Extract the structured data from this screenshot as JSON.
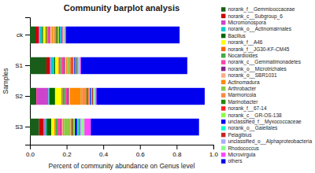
{
  "chart_data": {
    "type": "bar",
    "orientation": "horizontal",
    "stacked": true,
    "title": "Community barplot analysis",
    "xlabel": "Percent of community abundance on Genus level",
    "ylabel": "Samples",
    "categories": [
      "ck",
      "S1",
      "S2",
      "S3"
    ],
    "series": [
      {
        "name": "norank_f__Gemmiooccaceae",
        "color": "#1a5c1a",
        "values": [
          0.03,
          0.09,
          0.03,
          0.05
        ]
      },
      {
        "name": "norank_c__Subgroup_6",
        "color": "#cc0000",
        "values": [
          0.018,
          0.018,
          0.006,
          0.025
        ]
      },
      {
        "name": "Micromonospora",
        "color": "#cc44cc",
        "values": [
          0.006,
          0.006,
          0.065,
          0.006
        ]
      },
      {
        "name": "norank_o__Actinomairnales",
        "color": "#00cccc",
        "values": [
          0.012,
          0.018,
          0.006,
          0.01
        ]
      },
      {
        "name": "Bacillus",
        "color": "#006600",
        "values": [
          0.006,
          0.006,
          0.03,
          0.025
        ]
      },
      {
        "name": "norank_f__A46",
        "color": "#ffff00",
        "values": [
          0.012,
          0.018,
          0.035,
          0.018
        ]
      },
      {
        "name": "norank_f__JG30-KF-CM45",
        "color": "#ff6600",
        "values": [
          0.006,
          0.008,
          0.006,
          0.006
        ]
      },
      {
        "name": "Nocardioides",
        "color": "#44aa44",
        "values": [
          0.006,
          0.006,
          0.014,
          0.01
        ]
      },
      {
        "name": "norank_c__Gemmatimonadetes",
        "color": "#ff44aa",
        "values": [
          0.008,
          0.014,
          0.014,
          0.018
        ]
      },
      {
        "name": "norank_o__Microtrichales",
        "color": "#882288",
        "values": [
          0.006,
          0.006,
          0.006,
          0.006
        ]
      },
      {
        "name": "norank_o__SBR1031",
        "color": "#ffaa88",
        "values": [
          0.01,
          0.008,
          0.006,
          0.006
        ]
      },
      {
        "name": "Actinomadura",
        "color": "#ff8800",
        "values": [
          0.006,
          0.006,
          0.06,
          0.006
        ]
      },
      {
        "name": "Arthrobacter",
        "color": "#88cc44",
        "values": [
          0.006,
          0.01,
          0.006,
          0.035
        ]
      },
      {
        "name": "Marmoricola",
        "color": "#ff8844",
        "values": [
          0.01,
          0.01,
          0.025,
          0.006
        ]
      },
      {
        "name": "Marinobacter",
        "color": "#228800",
        "values": [
          0.006,
          0.006,
          0.006,
          0.006
        ]
      },
      {
        "name": "norank_f__67-14",
        "color": "#ff2222",
        "values": [
          0.006,
          0.006,
          0.006,
          0.006
        ]
      },
      {
        "name": "norank_c__GR-OS-138",
        "color": "#88ff44",
        "values": [
          0.006,
          0.006,
          0.006,
          0.006
        ]
      },
      {
        "name": "unclassified_f__Myxococcaceae",
        "color": "#0000ff",
        "values": [
          0.006,
          0.006,
          0.006,
          0.012
        ]
      },
      {
        "name": "norank_o__Gaiellales",
        "color": "#00ffcc",
        "values": [
          0.006,
          0.006,
          0.006,
          0.01
        ]
      },
      {
        "name": "Pelagibius",
        "color": "#cc2222",
        "values": [
          0.006,
          0.006,
          0.006,
          0.006
        ]
      },
      {
        "name": "unclassified_o__Alphaproteobacteria",
        "color": "#aaaaff",
        "values": [
          0.006,
          0.006,
          0.006,
          0.006
        ]
      },
      {
        "name": "Rhodococcus",
        "color": "#88ff88",
        "values": [
          0.006,
          0.006,
          0.006,
          0.018
        ]
      },
      {
        "name": "Microvirgula",
        "color": "#ff44ff",
        "values": [
          0.006,
          0.006,
          0.006,
          0.035
        ]
      },
      {
        "name": "others",
        "color": "#0000ee",
        "values": [
          0.62,
          0.58,
          0.59,
          0.59
        ]
      }
    ],
    "xlim": [
      0,
      1.0
    ],
    "xticks": [
      {
        "value": 0,
        "label": "0.0"
      },
      0.2,
      0.4,
      0.6,
      0.8,
      {
        "value": 1.0,
        "label": "1.0"
      }
    ],
    "grid": false,
    "legend": "right"
  }
}
